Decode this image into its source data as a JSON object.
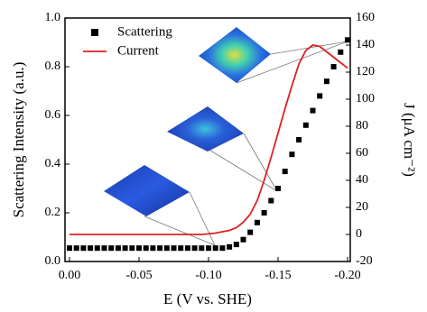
{
  "chart_data": {
    "type": "line",
    "xlabel": "E (V vs. SHE)",
    "ylabel": "Scattering Intensity (a.u.)",
    "y2label": "J (μA cm⁻²)",
    "x": [
      0,
      -0.005,
      -0.01,
      -0.015,
      -0.02,
      -0.025,
      -0.03,
      -0.035,
      -0.04,
      -0.045,
      -0.05,
      -0.055,
      -0.06,
      -0.065,
      -0.07,
      -0.075,
      -0.08,
      -0.085,
      -0.09,
      -0.095,
      -0.1,
      -0.105,
      -0.11,
      -0.115,
      -0.12,
      -0.125,
      -0.13,
      -0.135,
      -0.14,
      -0.145,
      -0.15,
      -0.155,
      -0.16,
      -0.165,
      -0.17,
      -0.175,
      -0.18,
      -0.185,
      -0.19,
      -0.195,
      -0.2
    ],
    "series": [
      {
        "name": "Scattering",
        "style": "markers",
        "color": "#000000",
        "axis": "y",
        "values": [
          0.055,
          0.055,
          0.055,
          0.055,
          0.055,
          0.055,
          0.055,
          0.055,
          0.055,
          0.055,
          0.055,
          0.055,
          0.055,
          0.055,
          0.055,
          0.055,
          0.055,
          0.055,
          0.055,
          0.055,
          0.055,
          0.055,
          0.055,
          0.06,
          0.07,
          0.09,
          0.12,
          0.16,
          0.2,
          0.25,
          0.3,
          0.37,
          0.44,
          0.5,
          0.56,
          0.62,
          0.68,
          0.74,
          0.8,
          0.86,
          0.91
        ]
      },
      {
        "name": "Current",
        "style": "line",
        "color": "#e02020",
        "axis": "y2",
        "values": [
          0,
          0,
          0,
          0,
          0,
          0,
          0,
          0,
          0,
          0,
          0,
          0,
          0,
          0,
          0,
          0,
          0,
          0,
          0,
          0,
          0.5,
          1,
          2,
          3,
          5,
          9,
          15,
          25,
          40,
          57,
          75,
          93,
          110,
          126,
          136,
          140,
          139,
          135,
          131,
          127,
          123
        ]
      }
    ],
    "xlim": [
      0,
      -0.2
    ],
    "xticks": [
      {
        "value": 0,
        "label": "0.00"
      },
      -0.05,
      {
        "value": -0.1,
        "label": "-0.10"
      },
      -0.15,
      {
        "value": -0.2,
        "label": "-0.20"
      }
    ],
    "ylim": [
      0,
      1
    ],
    "yticks": [
      {
        "value": 0,
        "label": "0.0"
      },
      0.2,
      0.4,
      0.6,
      0.8,
      {
        "value": 1,
        "label": "1.0"
      }
    ],
    "y2lim": [
      -20,
      160
    ],
    "y2ticks": [
      -20,
      0,
      20,
      40,
      60,
      80,
      100,
      120,
      140,
      160
    ],
    "legend": "upper-left"
  }
}
